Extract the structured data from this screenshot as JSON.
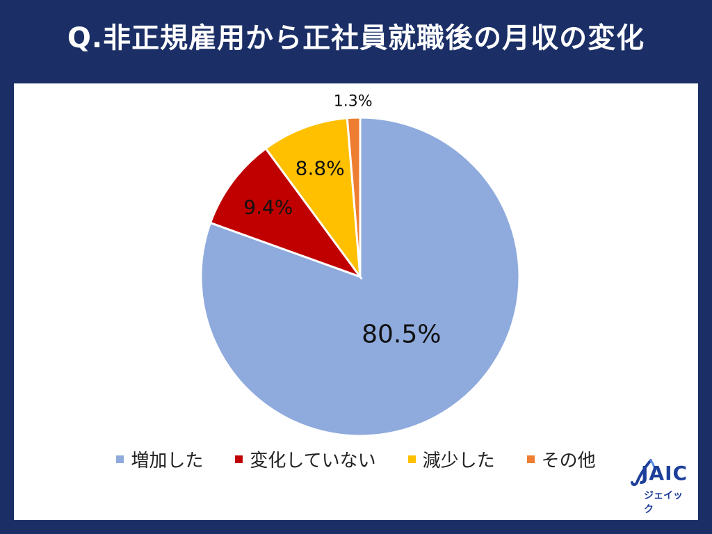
{
  "title": "Q.非正規雇用から正社員就職後の月収の変化",
  "chart_data": {
    "type": "pie",
    "title": "Q.非正規雇用から正社員就職後の月収の変化",
    "categories": [
      "増加した",
      "変化していない",
      "減少した",
      "その他"
    ],
    "values": [
      80.5,
      9.4,
      8.8,
      1.3
    ],
    "labels": [
      "80.5%",
      "9.4%",
      "8.8%",
      "1.3%"
    ],
    "colors": [
      "#8faadc",
      "#c00000",
      "#ffc000",
      "#ed7d31"
    ],
    "start": "12 o'clock",
    "direction": "clockwise",
    "legend_position": "bottom"
  },
  "logo": {
    "name": "JAIC",
    "sub": "ジェイック",
    "color": "#1d3f9a"
  }
}
